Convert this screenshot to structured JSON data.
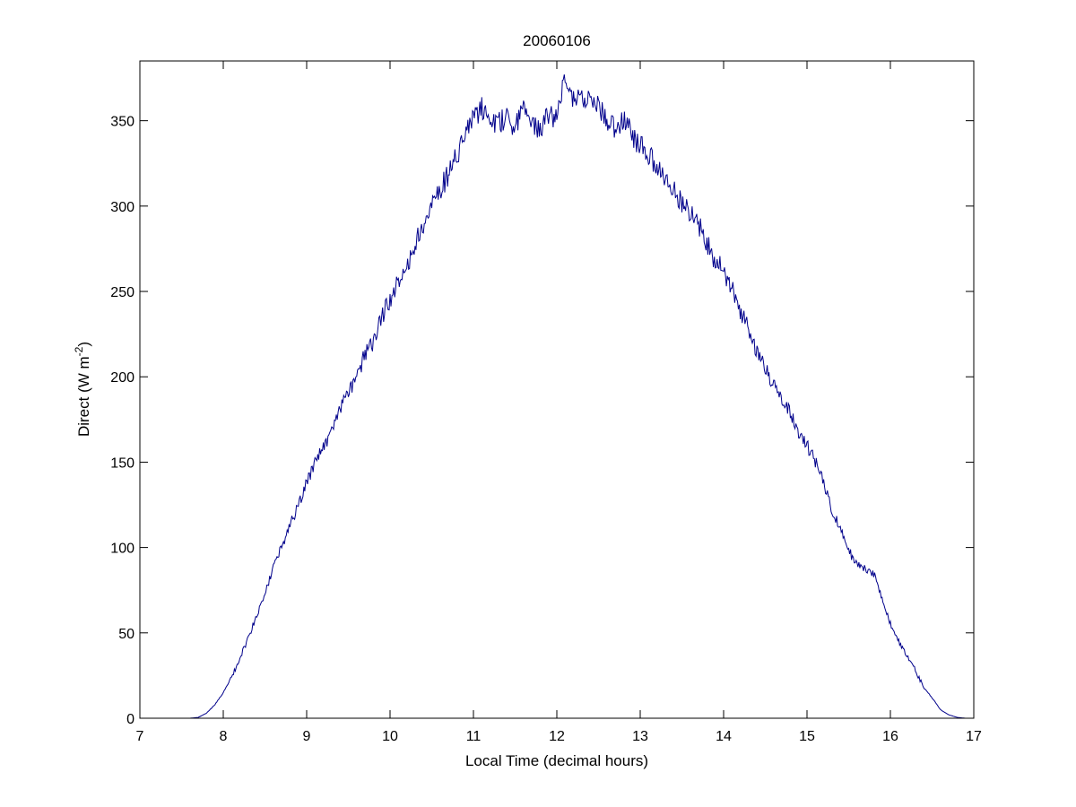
{
  "chart_data": {
    "type": "line",
    "title": "20060106",
    "xlabel": "Local Time (decimal hours)",
    "ylabel_main": "Direct (W m",
    "ylabel_sup": "-2",
    "ylabel_close": ")",
    "xlim": [
      7,
      17
    ],
    "ylim": [
      0,
      385
    ],
    "xticks": [
      "7",
      "8",
      "9",
      "10",
      "11",
      "12",
      "13",
      "14",
      "15",
      "16",
      "17"
    ],
    "yticks": [
      "0",
      "50",
      "100",
      "150",
      "200",
      "250",
      "300",
      "350"
    ],
    "grid": false,
    "line_color": "#00008b",
    "series": [
      {
        "x": [
          7.0,
          7.6,
          7.7,
          7.8,
          7.9,
          8.0,
          8.1,
          8.2,
          8.3,
          8.4,
          8.5,
          8.6,
          8.7,
          8.8,
          8.9,
          9.0,
          9.1,
          9.2,
          9.3,
          9.4,
          9.5,
          9.6,
          9.7,
          9.8,
          9.9,
          10.0,
          10.1,
          10.2,
          10.3,
          10.4,
          10.5,
          10.6,
          10.7,
          10.8,
          10.9,
          11.0,
          11.1,
          11.2,
          11.3,
          11.4,
          11.5,
          11.6,
          11.7,
          11.8,
          11.9,
          12.0,
          12.1,
          12.2,
          12.3,
          12.4,
          12.5,
          12.6,
          12.7,
          12.8,
          12.9,
          13.0,
          13.1,
          13.2,
          13.3,
          13.4,
          13.5,
          13.6,
          13.7,
          13.8,
          13.9,
          14.0,
          14.1,
          14.2,
          14.3,
          14.4,
          14.5,
          14.6,
          14.7,
          14.8,
          14.9,
          15.0,
          15.1,
          15.2,
          15.3,
          15.4,
          15.5,
          15.6,
          15.7,
          15.8,
          15.9,
          16.0,
          16.1,
          16.2,
          16.3,
          16.4,
          16.5,
          16.6,
          16.7,
          16.8,
          16.9,
          17.0
        ],
        "y": [
          0,
          0,
          0.5,
          3,
          8,
          15,
          24,
          35,
          47,
          60,
          73,
          88,
          100,
          113,
          125,
          138,
          150,
          158,
          168,
          182,
          191,
          200,
          213,
          220,
          235,
          245,
          255,
          265,
          278,
          288,
          300,
          310,
          318,
          330,
          342,
          350,
          358,
          352,
          348,
          353,
          345,
          362,
          350,
          345,
          353,
          352,
          378,
          362,
          365,
          360,
          358,
          350,
          345,
          352,
          342,
          335,
          330,
          322,
          318,
          310,
          302,
          296,
          290,
          278,
          268,
          262,
          252,
          238,
          228,
          215,
          205,
          195,
          188,
          178,
          168,
          160,
          150,
          138,
          122,
          112,
          98,
          90,
          87,
          85,
          70,
          55,
          45,
          37,
          28,
          18,
          12,
          5,
          2,
          0.5,
          0,
          0
        ]
      }
    ]
  }
}
